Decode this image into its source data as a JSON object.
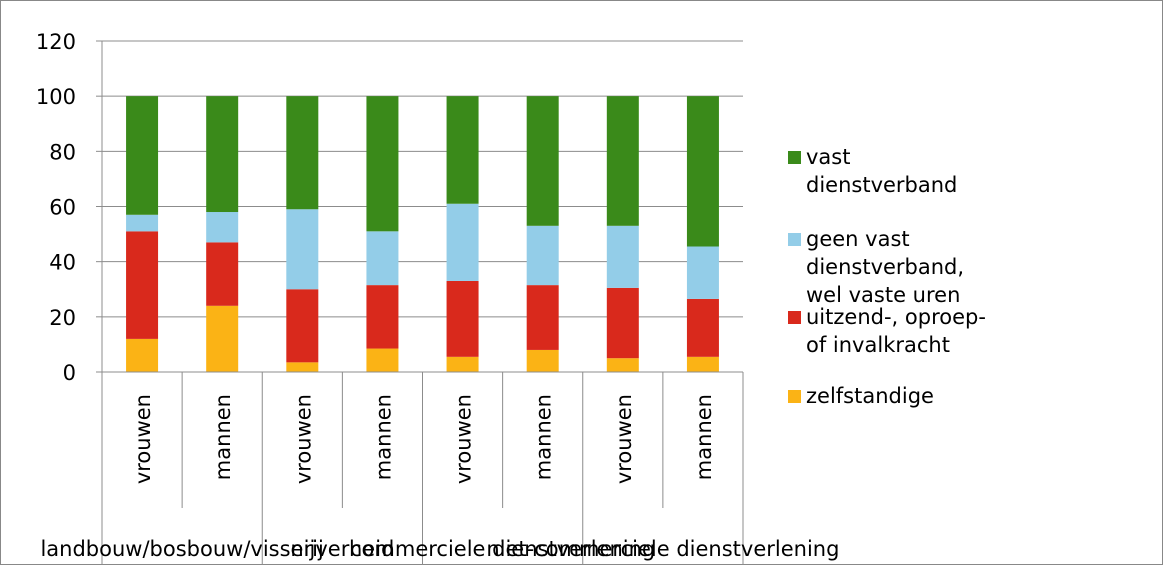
{
  "chart_data": {
    "type": "stacked_bar",
    "categories": [
      "vrouwen",
      "mannen",
      "vrouwen",
      "mannen",
      "vrouwen",
      "mannen",
      "vrouwen",
      "mannen"
    ],
    "groups": [
      "landbouw/bosbouw/visserij",
      "nijverheid",
      "commerciele dienstverlening",
      "niet-commerciele dienstverlening"
    ],
    "series": [
      {
        "name": "zelfstandige",
        "color": "#fbb315",
        "values": [
          12,
          24,
          3.5,
          8.5,
          5.5,
          8,
          5,
          5.5
        ]
      },
      {
        "name": "uitzend-, oproep- of invalkracht",
        "color": "#d9291c",
        "values": [
          39,
          23,
          26.5,
          23,
          27.5,
          23.5,
          25.5,
          21
        ]
      },
      {
        "name": "geen vast dienstverband, wel vaste uren",
        "color": "#93cde8",
        "values": [
          6,
          11,
          29,
          19.5,
          28,
          21.5,
          22.5,
          19
        ]
      },
      {
        "name": "vast dienstverband",
        "color": "#3a8a1a",
        "values": [
          43,
          42,
          41,
          49,
          39,
          47,
          47,
          54.5
        ]
      }
    ],
    "ylim": [
      0,
      120
    ],
    "yticks": [
      0,
      20,
      40,
      60,
      80,
      100,
      120
    ],
    "grid": true
  }
}
